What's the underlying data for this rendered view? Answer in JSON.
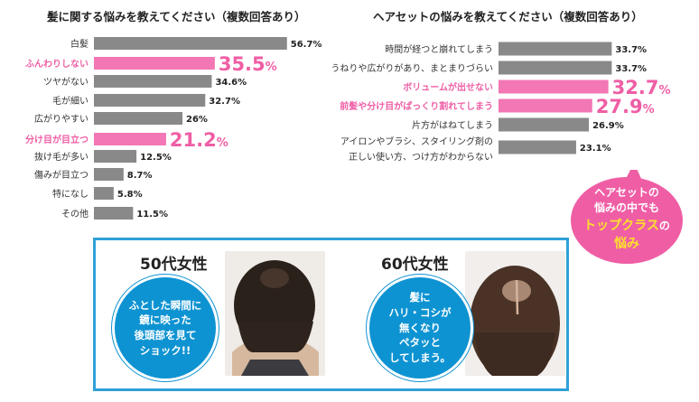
{
  "chart_data": [
    {
      "type": "bar",
      "title": "髪に関する悩みを教えてください（複数回答あり）",
      "categories": [
        "白髪",
        "ふんわりしない",
        "ツヤがない",
        "毛が細い",
        "広がりやすい",
        "分け目が目立つ",
        "抜け毛が多い",
        "傷みが目立つ",
        "特になし",
        "その他"
      ],
      "values": [
        56.7,
        35.5,
        34.6,
        32.7,
        26,
        21.2,
        12.5,
        8.7,
        5.8,
        11.5
      ],
      "value_labels": [
        "56.7%",
        "35.5%",
        "34.6%",
        "32.7%",
        "26%",
        "21.2%",
        "12.5%",
        "8.7%",
        "5.8%",
        "11.5%"
      ],
      "highlighted": [
        false,
        true,
        false,
        false,
        false,
        true,
        false,
        false,
        false,
        false
      ],
      "unit": "%"
    },
    {
      "type": "bar",
      "title": "ヘアセットの悩みを教えてください（複数回答あり）",
      "categories": [
        [
          "時間が経つと崩れてしまう"
        ],
        [
          "うねりや広がりがあり、まとまりづらい"
        ],
        [
          "ボリュームが出せない"
        ],
        [
          "前髪や分け目がぱっくり割れてしまう"
        ],
        [
          "片方がはねてしまう"
        ],
        [
          "アイロンやブラシ、スタイリング剤の",
          "正しい使い方、つけ方がわからない"
        ]
      ],
      "values": [
        33.7,
        33.7,
        32.7,
        27.9,
        26.9,
        23.1
      ],
      "value_labels": [
        "33.7%",
        "33.7%",
        "32.7%",
        "27.9%",
        "26.9%",
        "23.1%"
      ],
      "highlighted": [
        false,
        false,
        true,
        true,
        false,
        false
      ],
      "unit": "%"
    }
  ],
  "callout": {
    "lines": [
      "ヘアセットの",
      "悩みの中でも",
      "トップクラス",
      "の",
      "悩み"
    ]
  },
  "personas": [
    {
      "label": "50代女性",
      "bubble_lines": [
        "ふとした瞬間に",
        "鏡に映った",
        "後頭部を見て",
        "ショック!!"
      ]
    },
    {
      "label": "60代女性",
      "bubble_lines": [
        "髪に",
        "ハリ・コシが",
        "無くなり",
        "ペタッと",
        "してしまう。"
      ]
    }
  ],
  "colors": {
    "bar": "#898989",
    "highlight_bar": "#f277b4",
    "highlight_text": "#ef5ea5",
    "panel_border": "#2ea0d8",
    "bubble_blue": "#0e93d2",
    "callout_pink": "#ef5ea5",
    "callout_yellow": "#ffe12b"
  }
}
